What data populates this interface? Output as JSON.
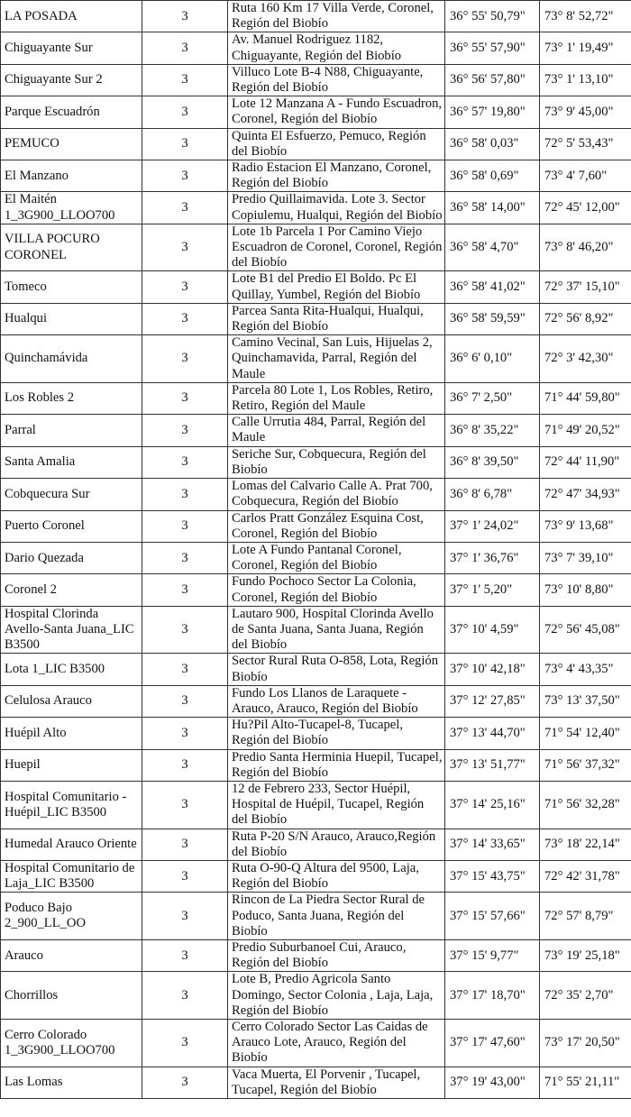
{
  "rows": [
    {
      "name": "LA POSADA",
      "num": "3",
      "address": "Ruta 160 Km 17 Villa Verde, Coronel, Región del Biobío",
      "lat": "36° 55' 50,79\"",
      "lon": "73° 8' 52,72\""
    },
    {
      "name": "Chiguayante Sur",
      "num": "3",
      "address": "Av. Manuel Rodriguez 1182, Chiguayante, Región del Biobío",
      "lat": "36° 55' 57,90\"",
      "lon": "73° 1' 19,49\""
    },
    {
      "name": "Chiguayante Sur 2",
      "num": "3",
      "address": "Villuco Lote B-4 N88, Chiguayante, Región del Biobío",
      "lat": "36° 56' 57,80\"",
      "lon": "73° 1' 13,10\""
    },
    {
      "name": "Parque Escuadrón",
      "num": "3",
      "address": "Lote 12 Manzana A - Fundo Escuadron, Coronel, Región del Biobío",
      "lat": "36° 57' 19,80\"",
      "lon": "73° 9' 45,00\""
    },
    {
      "name": "PEMUCO",
      "num": "3",
      "address": "Quinta El Esfuerzo, Pemuco, Región del Biobío",
      "lat": "36° 58' 0,03\"",
      "lon": "72° 5' 53,43\""
    },
    {
      "name": "El Manzano",
      "num": "3",
      "address": "Radio Estacion El Manzano, Coronel, Región del Biobío",
      "lat": "36° 58' 0,69\"",
      "lon": "73° 4' 7,60\""
    },
    {
      "name": "El Maitén 1_3G900_LLOO700",
      "num": "3",
      "address": "Predio Quillaimavida. Lote 3. Sector Copiulemu, Hualqui, Región del Biobío",
      "lat": "36° 58' 14,00\"",
      "lon": "72° 45' 12,00\""
    },
    {
      "name": "VILLA POCURO CORONEL",
      "num": "3",
      "address": "Lote 1b Parcela 1 Por Camino Viejo Escuadron de Coronel, Coronel, Región del Biobío",
      "lat": "36° 58' 4,70\"",
      "lon": "73° 8' 46,20\""
    },
    {
      "name": "Tomeco",
      "num": "3",
      "address": "Lote B1 del Predio El Boldo. Pc El Quillay, Yumbel, Región del Biobío",
      "lat": "36° 58' 41,02\"",
      "lon": "72° 37' 15,10\""
    },
    {
      "name": "Hualqui",
      "num": "3",
      "address": "Parcea Santa Rita-Hualqui, Hualqui, Región del Biobío",
      "lat": "36° 58' 59,59\"",
      "lon": "72° 56' 8,92\""
    },
    {
      "name": "Quinchamávida",
      "num": "3",
      "address": "Camino Vecinal, San Luis, Hijuelas 2, Quinchamavida, Parral, Región del Maule",
      "lat": "36° 6' 0,10\"",
      "lon": "72° 3' 42,30\""
    },
    {
      "name": "Los Robles 2",
      "num": "3",
      "address": "Parcela 80 Lote 1, Los Robles, Retiro, Retiro, Región del Maule",
      "lat": "36° 7' 2,50\"",
      "lon": "71° 44' 59,80\""
    },
    {
      "name": "Parral",
      "num": "3",
      "address": "Calle Urrutia 484, Parral, Región del Maule",
      "lat": "36° 8' 35,22\"",
      "lon": "71° 49' 20,52\""
    },
    {
      "name": "Santa Amalia",
      "num": "3",
      "address": "Seriche Sur, Cobquecura, Región del Biobío",
      "lat": "36° 8' 39,50\"",
      "lon": "72° 44' 11,90\""
    },
    {
      "name": "Cobquecura Sur",
      "num": "3",
      "address": "Lomas del Calvario Calle A. Prat 700, Cobquecura, Región del Biobío",
      "lat": "36° 8' 6,78\"",
      "lon": "72° 47' 34,93\""
    },
    {
      "name": "Puerto Coronel",
      "num": "3",
      "address": "Carlos Pratt González Esquina Cost, Coronel, Región del Biobío",
      "lat": "37° 1' 24,02\"",
      "lon": "73° 9' 13,68\""
    },
    {
      "name": "Dario Quezada",
      "num": "3",
      "address": "Lote A Fundo Pantanal Coronel, Coronel, Región del Biobío",
      "lat": "37° 1' 36,76\"",
      "lon": "73° 7' 39,10\""
    },
    {
      "name": "Coronel 2",
      "num": "3",
      "address": "Fundo Pochoco Sector La Colonia, Coronel, Región del Biobío",
      "lat": "37° 1' 5,20\"",
      "lon": "73° 10' 8,80\""
    },
    {
      "name": "Hospital Clorinda Avello-Santa Juana_LIC B3500",
      "num": "3",
      "address": "Lautaro 900, Hospital Clorinda Avello de Santa Juana, Santa Juana, Región del Biobío",
      "lat": "37° 10' 4,59\"",
      "lon": "72° 56' 45,08\""
    },
    {
      "name": "Lota 1_LIC B3500",
      "num": "3",
      "address": "Sector Rural Ruta O-858,  Lota, Región Biobío",
      "lat": "37° 10' 42,18\"",
      "lon": "73° 4' 43,35\""
    },
    {
      "name": "Celulosa Arauco",
      "num": "3",
      "address": "Fundo Los Llanos de Laraquete - Arauco, Arauco, Región del Biobío",
      "lat": "37° 12' 27,85\"",
      "lon": "73° 13' 37,50\""
    },
    {
      "name": "Huépil Alto",
      "num": "3",
      "address": "Hu?Pil Alto-Tucapel-8, Tucapel, Región del Biobío",
      "lat": "37° 13' 44,70\"",
      "lon": "71° 54' 12,40\""
    },
    {
      "name": "Huepil",
      "num": "3",
      "address": "Predio Santa Herminia Huepil, Tucapel, Región del Biobío",
      "lat": "37° 13' 51,77\"",
      "lon": "71° 56' 37,32\""
    },
    {
      "name": "Hospital Comunitario - Huépil_LIC B3500",
      "num": "3",
      "address": "12 de Febrero 233, Sector Huépil, Hospital de Huépil, Tucapel, Región del Biobío",
      "lat": "37° 14' 25,16\"",
      "lon": "71° 56' 32,28\""
    },
    {
      "name": "Humedal Arauco Oriente",
      "num": "3",
      "address": "Ruta P-20 S/N Arauco, Arauco,Región del Biobío",
      "lat": "37° 14' 33,65\"",
      "lon": "73° 18' 22,14\""
    },
    {
      "name": "Hospital Comunitario de Laja_LIC B3500",
      "num": "3",
      "address": "Ruta O-90-Q Altura del 9500, Laja, Región del Biobío",
      "lat": "37° 15' 43,75\"",
      "lon": "72° 42' 31,78\""
    },
    {
      "name": "Poduco Bajo 2_900_LL_OO",
      "num": "3",
      "address": "Rincon de La Piedra Sector Rural de Poduco, Santa Juana, Región del Biobío",
      "lat": "37° 15' 57,66\"",
      "lon": "72° 57' 8,79\""
    },
    {
      "name": "Arauco",
      "num": "3",
      "address": "Predio Suburbanoel Cui, Arauco, Región del Biobío",
      "lat": "37° 15' 9,77\"",
      "lon": "73° 19' 25,18\""
    },
    {
      "name": "Chorrillos",
      "num": "3",
      "address": "Lote B, Predio Agricola Santo Domingo, Sector Colonia , Laja, Laja, Región del Biobío",
      "lat": "37° 17' 18,70\"",
      "lon": "72° 35' 2,70\""
    },
    {
      "name": "Cerro Colorado 1_3G900_LLOO700",
      "num": "3",
      "address": "Cerro Colorado Sector Las Caidas de Arauco Lote, Arauco, Región del Biobío",
      "lat": "37° 17' 47,60\"",
      "lon": "73° 17' 20,50\""
    },
    {
      "name": "Las Lomas",
      "num": "3",
      "address": "Vaca Muerta, El Porvenir , Tucapel, Tucapel, Región del Biobío",
      "lat": "37° 19' 43,00\"",
      "lon": "71° 55' 21,11\""
    }
  ]
}
